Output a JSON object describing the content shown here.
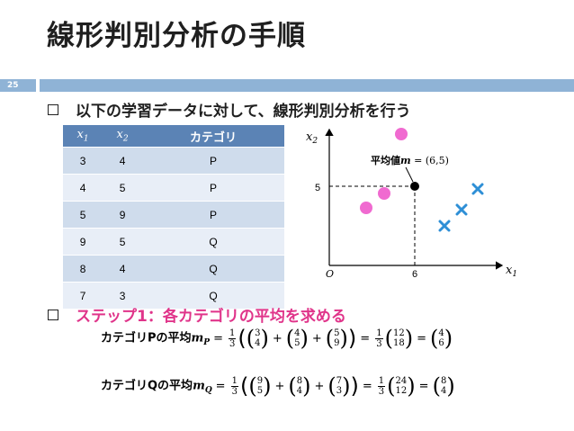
{
  "slide": {
    "title": "線形判別分析の手順",
    "page_number": "25"
  },
  "bullet1": "以下の学習データに対して、線形判別分析を行う",
  "table": {
    "headers": [
      "x1",
      "x2",
      "カテゴリ"
    ],
    "rows": [
      [
        "3",
        "4",
        "P"
      ],
      [
        "4",
        "5",
        "P"
      ],
      [
        "5",
        "9",
        "P"
      ],
      [
        "9",
        "5",
        "Q"
      ],
      [
        "8",
        "4",
        "Q"
      ],
      [
        "7",
        "3",
        "Q"
      ]
    ]
  },
  "plot": {
    "x_label": "x1",
    "y_label": "x2",
    "origin_label": "O",
    "x_tick": "6",
    "y_tick": "5",
    "mean_label_prefix": "平均値",
    "mean_label_var": "m",
    "mean_label_value": " = (6,5)",
    "colors": {
      "category_p": "#f06ad0",
      "category_q": "#2e8fd6",
      "mean": "#000000"
    }
  },
  "bullet2": "ステップ1：各カテゴリの平均を求める",
  "formula_p": {
    "label": "カテゴリPの平均",
    "var": "m",
    "sub": "P",
    "coef": "1",
    "den": "3",
    "vectors": [
      [
        "3",
        "4"
      ],
      [
        "4",
        "5"
      ],
      [
        "5",
        "9"
      ]
    ],
    "sum": [
      "12",
      "18"
    ],
    "result": [
      "4",
      "6"
    ]
  },
  "formula_q": {
    "label": "カテゴリQの平均",
    "var": "m",
    "sub": "Q",
    "coef": "1",
    "den": "3",
    "vectors": [
      [
        "9",
        "5"
      ],
      [
        "8",
        "4"
      ],
      [
        "7",
        "3"
      ]
    ],
    "sum": [
      "24",
      "12"
    ],
    "result": [
      "8",
      "4"
    ]
  }
}
